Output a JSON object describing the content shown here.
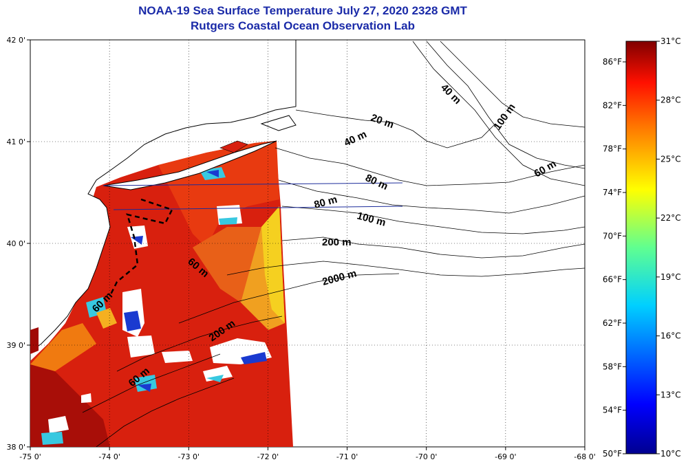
{
  "title": "NOAA-19 Sea Surface Temperature July 27, 2020 2328 GMT",
  "subtitle": "Rutgers Coastal Ocean Observation Lab",
  "map": {
    "lon_range": [
      -75,
      -68
    ],
    "lat_range": [
      38,
      42
    ],
    "lon_ticks": [
      "-75 0'",
      "-74 0'",
      "-73 0'",
      "-72 0'",
      "-71 0'",
      "-70 0'",
      "-69 0'",
      "-68 0'"
    ],
    "lat_ticks": [
      "38 0'",
      "39 0'",
      "40 0'",
      "41 0'",
      "42 0'"
    ],
    "grid": "dotted",
    "isobath_labels": [
      "20 m",
      "40 m",
      "40 m",
      "60 m",
      "60 m",
      "60 m",
      "60 m",
      "80 m",
      "80 m",
      "100 m",
      "100 m",
      "200 m",
      "200 m",
      "2000 m"
    ],
    "land_color": "#ffffff",
    "sst_colors": [
      "#d01a10",
      "#e8360c",
      "#b01008",
      "#f07010",
      "#f5b020",
      "#38c8e0",
      "#1a3ad0"
    ]
  },
  "colorbar": {
    "celsius_labels": [
      "31°C",
      "28°C",
      "25°C",
      "22°C",
      "19°C",
      "16°C",
      "13°C",
      "10°C"
    ],
    "fahrenheit_labels": [
      "86°F",
      "82°F",
      "78°F",
      "74°F",
      "70°F",
      "66°F",
      "62°F",
      "58°F",
      "54°F",
      "50°F"
    ],
    "range_c": [
      10,
      31
    ],
    "colormap": "jet"
  }
}
